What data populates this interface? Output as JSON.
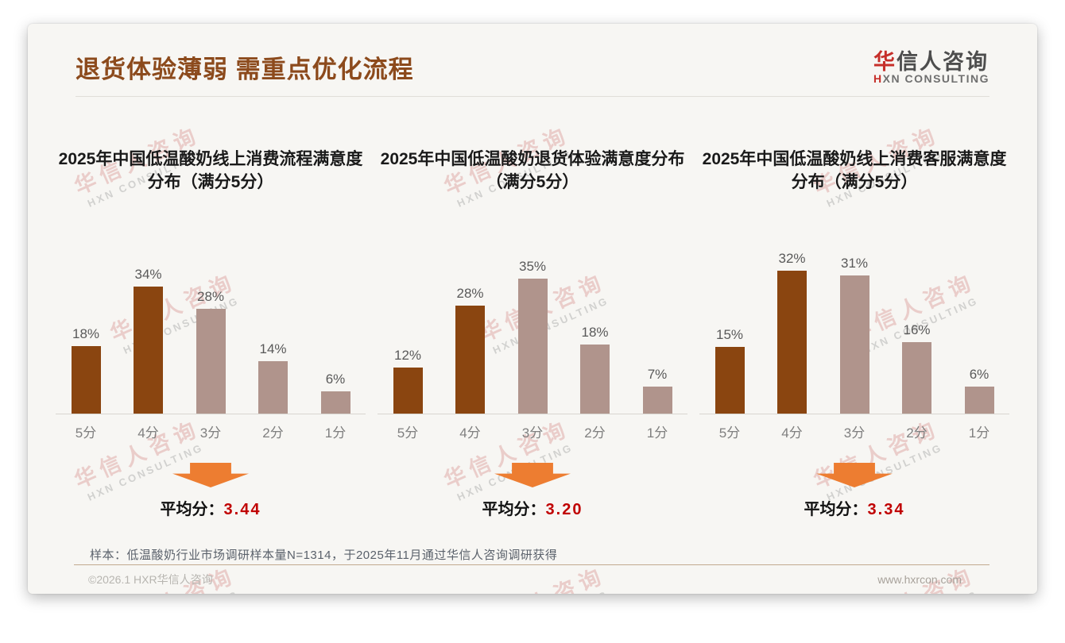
{
  "page": {
    "title": "退货体验薄弱 需重点优化流程",
    "logo": {
      "cn_red": "华",
      "cn_rest": "信人咨询",
      "en_red": "H",
      "en_rest": "XN CONSULTING"
    },
    "watermark": {
      "line1": "华信人咨询",
      "line2": "HXN CONSULTING"
    },
    "footer": {
      "note": "样本：低温酸奶行业市场调研样本量N=1314，于2025年11月通过华信人咨询调研获得",
      "copyright": "©2026.1 HXR华信人咨询",
      "website": "www.hxrcon.com"
    },
    "colors": {
      "heading": "#8c4a1c",
      "bar_dark": "#8a4510",
      "bar_light": "#b0948c",
      "arrow": "#ed7d31",
      "average_value": "#c00000"
    }
  },
  "chart_data": [
    {
      "type": "bar",
      "title": "2025年中国低温酸奶线上消费流程满意度分布（满分5分）",
      "categories": [
        "5分",
        "4分",
        "3分",
        "2分",
        "1分"
      ],
      "values": [
        18,
        34,
        28,
        14,
        6
      ],
      "labels": [
        "18%",
        "34%",
        "28%",
        "14%",
        "6%"
      ],
      "bar_colors": [
        "#8a4510",
        "#8a4510",
        "#b0948c",
        "#b0948c",
        "#b0948c"
      ],
      "ylim": [
        0,
        40
      ],
      "grid": false,
      "average_label": "平均分：",
      "average": "3.44"
    },
    {
      "type": "bar",
      "title": "2025年中国低温酸奶退货体验满意度分布（满分5分）",
      "categories": [
        "5分",
        "4分",
        "3分",
        "2分",
        "1分"
      ],
      "values": [
        12,
        28,
        35,
        18,
        7
      ],
      "labels": [
        "12%",
        "28%",
        "35%",
        "18%",
        "7%"
      ],
      "bar_colors": [
        "#8a4510",
        "#8a4510",
        "#b0948c",
        "#b0948c",
        "#b0948c"
      ],
      "ylim": [
        0,
        40
      ],
      "grid": false,
      "average_label": "平均分：",
      "average": "3.20"
    },
    {
      "type": "bar",
      "title": "2025年中国低温酸奶线上消费客服满意度分布（满分5分）",
      "categories": [
        "5分",
        "4分",
        "3分",
        "2分",
        "1分"
      ],
      "values": [
        15,
        32,
        31,
        16,
        6
      ],
      "labels": [
        "15%",
        "32%",
        "31%",
        "16%",
        "6%"
      ],
      "bar_colors": [
        "#8a4510",
        "#8a4510",
        "#b0948c",
        "#b0948c",
        "#b0948c"
      ],
      "ylim": [
        0,
        40
      ],
      "grid": false,
      "average_label": "平均分：",
      "average": "3.34"
    }
  ]
}
